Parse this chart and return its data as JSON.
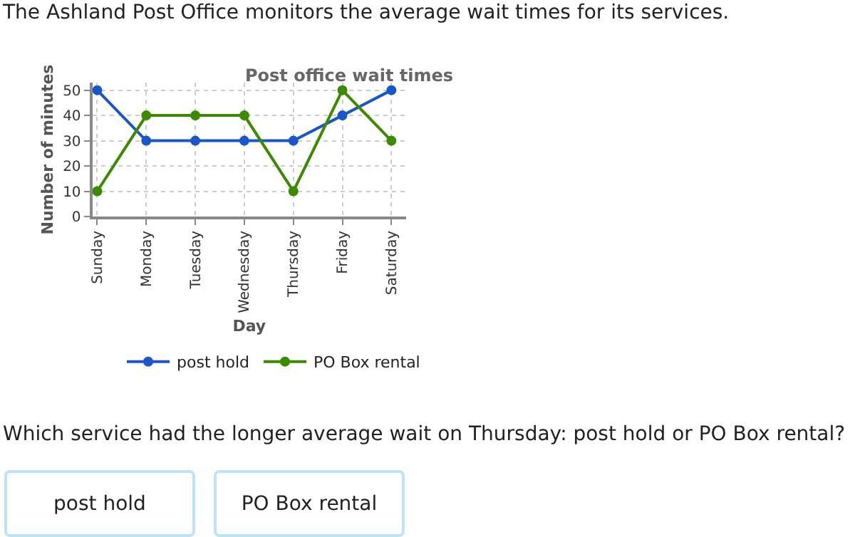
{
  "chart_data": {
    "type": "line",
    "title": "Post office wait times",
    "xlabel": "Day",
    "ylabel": "Number of minutes",
    "categories": [
      "Sunday",
      "Monday",
      "Tuesday",
      "Wednesday",
      "Thursday",
      "Friday",
      "Saturday"
    ],
    "series": [
      {
        "name": "post hold",
        "color": "#1a56c8",
        "values": [
          50,
          30,
          30,
          30,
          30,
          40,
          50
        ]
      },
      {
        "name": "PO Box rental",
        "color": "#3c8a00",
        "values": [
          10,
          40,
          40,
          40,
          10,
          50,
          30
        ]
      }
    ],
    "ylim": [
      0,
      53
    ],
    "yticks": [
      0,
      10,
      20,
      30,
      40,
      50
    ],
    "grid": true,
    "legend": "bottom",
    "marker": "circle",
    "line_style": "solid",
    "annotations": [
      "The Ashland Post Office monitors the average wait times for its services.",
      "Which service had the longer average wait on Thursday: post hold or PO Box rental?",
      "post hold",
      "PO Box rental"
    ]
  }
}
